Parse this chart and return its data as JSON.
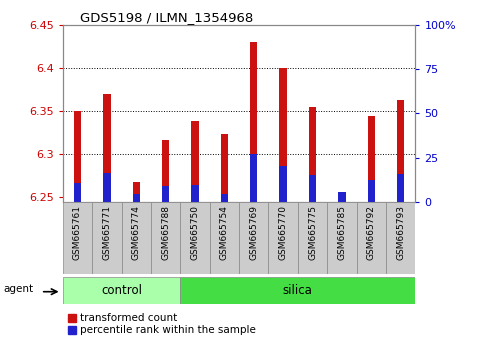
{
  "title": "GDS5198 / ILMN_1354968",
  "samples": [
    "GSM665761",
    "GSM665771",
    "GSM665774",
    "GSM665788",
    "GSM665750",
    "GSM665754",
    "GSM665769",
    "GSM665770",
    "GSM665775",
    "GSM665785",
    "GSM665792",
    "GSM665793"
  ],
  "groups": [
    "control",
    "control",
    "control",
    "control",
    "silica",
    "silica",
    "silica",
    "silica",
    "silica",
    "silica",
    "silica",
    "silica"
  ],
  "red_values": [
    6.35,
    6.37,
    6.268,
    6.317,
    6.338,
    6.323,
    6.43,
    6.4,
    6.355,
    6.253,
    6.344,
    6.363
  ],
  "blue_values": [
    6.267,
    6.278,
    6.254,
    6.263,
    6.265,
    6.254,
    6.3,
    6.287,
    6.276,
    6.256,
    6.27,
    6.277
  ],
  "ylim_left": [
    6.245,
    6.45
  ],
  "ylim_right": [
    0,
    100
  ],
  "yticks_left": [
    6.25,
    6.3,
    6.35,
    6.4,
    6.45
  ],
  "yticks_right": [
    0,
    25,
    50,
    75,
    100
  ],
  "ytick_labels_left": [
    "6.25",
    "6.3",
    "6.35",
    "6.4",
    "6.45"
  ],
  "ytick_labels_right": [
    "0",
    "25",
    "50",
    "75",
    "100%"
  ],
  "left_tick_color": "#cc0000",
  "right_tick_color": "#0000cc",
  "bar_width": 0.25,
  "red_color": "#cc1111",
  "blue_color": "#2222cc",
  "control_color_light": "#aaffaa",
  "silica_color_bright": "#44dd44",
  "sample_box_color": "#cccccc",
  "agent_label": "agent",
  "legend_red": "transformed count",
  "legend_blue": "percentile rank within the sample",
  "grid_color": "#000000",
  "plot_bg": "#ffffff",
  "base": 6.245
}
